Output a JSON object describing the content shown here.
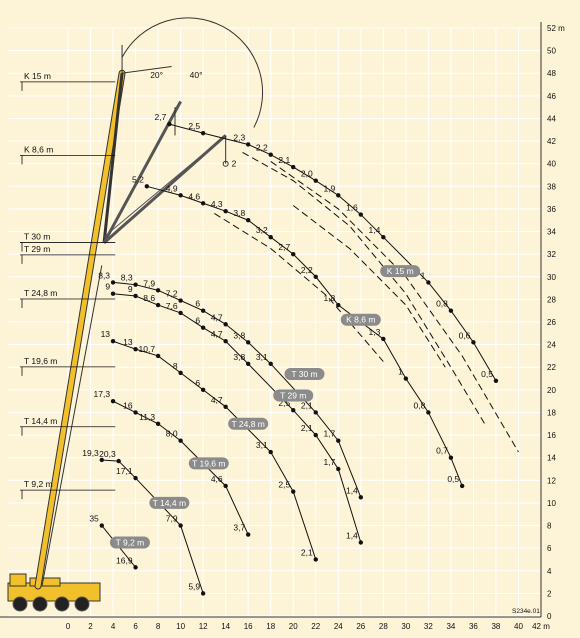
{
  "colors": {
    "background": "#fdf3d6",
    "crane": "#f2c02a",
    "pill": "#8b8b8b",
    "grid": "#ffffff",
    "ink": "#111111"
  },
  "chart_data": {
    "type": "scatter",
    "x_unit": "m",
    "x_ticks": [
      0,
      2,
      4,
      6,
      8,
      10,
      12,
      14,
      16,
      18,
      20,
      22,
      24,
      26,
      28,
      30,
      32,
      34,
      36,
      38,
      40,
      42
    ],
    "y_unit": "m",
    "y_ticks": [
      0,
      2,
      4,
      6,
      8,
      10,
      12,
      14,
      16,
      18,
      20,
      22,
      24,
      26,
      28,
      30,
      32,
      34,
      36,
      38,
      40,
      42,
      44,
      46,
      48,
      50,
      52
    ],
    "xlim": [
      0,
      42
    ],
    "ylim": [
      0,
      52
    ],
    "figure_code": "S234e.01",
    "angles": [
      "20°",
      "40°"
    ],
    "boom_labels": [
      {
        "label": "K 15 m",
        "y": 47.5
      },
      {
        "label": "K 8,6 m",
        "y": 41
      },
      {
        "label": "T 30 m",
        "y": 33.3
      },
      {
        "label": "T 29 m",
        "y": 32.2
      },
      {
        "label": "T 24,8 m",
        "y": 28.3
      },
      {
        "label": "T 19,6 m",
        "y": 22.3
      },
      {
        "label": "T 14,4 m",
        "y": 17
      },
      {
        "label": "T 9,2 m",
        "y": 11.4
      }
    ],
    "curves": [
      {
        "name": "T 9,2 m",
        "label_pos": [
          5.5,
          6.5
        ],
        "style": "solid",
        "points": [
          {
            "x": 3,
            "y": 8,
            "load": "35"
          },
          {
            "x": 6,
            "y": 4.3,
            "load": "16,9"
          }
        ]
      },
      {
        "name": "T 14,4 m",
        "label_pos": [
          9,
          10
        ],
        "style": "solid",
        "points": [
          {
            "x": 3,
            "y": 13.8,
            "load": "19,3"
          },
          {
            "x": 4.5,
            "y": 13.7,
            "load": "20,3"
          },
          {
            "x": 6,
            "y": 12.2,
            "load": "17,1"
          },
          {
            "x": 10,
            "y": 8,
            "load": "7,9"
          },
          {
            "x": 12,
            "y": 2,
            "load": "5,9"
          }
        ]
      },
      {
        "name": "T 19,6 m",
        "label_pos": [
          12.5,
          13.5
        ],
        "style": "solid",
        "points": [
          {
            "x": 4,
            "y": 19,
            "load": "17,3"
          },
          {
            "x": 6,
            "y": 18,
            "load": "16"
          },
          {
            "x": 8,
            "y": 17,
            "load": "11,3"
          },
          {
            "x": 10,
            "y": 15.5,
            "load": "8,0"
          },
          {
            "x": 14,
            "y": 11.5,
            "load": "4,6"
          },
          {
            "x": 16,
            "y": 7.2,
            "load": "3,7"
          }
        ]
      },
      {
        "name": "T 24,8 m",
        "label_pos": [
          16,
          17
        ],
        "style": "solid",
        "points": [
          {
            "x": 4,
            "y": 24.3,
            "load": "13"
          },
          {
            "x": 6,
            "y": 23.6,
            "load": "13"
          },
          {
            "x": 8,
            "y": 23,
            "load": "10,7"
          },
          {
            "x": 10,
            "y": 21.5,
            "load": "8"
          },
          {
            "x": 12,
            "y": 20,
            "load": "6"
          },
          {
            "x": 14,
            "y": 18.5,
            "load": "4,7"
          },
          {
            "x": 18,
            "y": 14.5,
            "load": "3,1"
          },
          {
            "x": 20,
            "y": 11,
            "load": "2,5"
          },
          {
            "x": 22,
            "y": 5,
            "load": "2,1"
          }
        ]
      },
      {
        "name": "T 29 m",
        "label_pos": [
          20,
          19.5
        ],
        "style": "solid",
        "points": [
          {
            "x": 4,
            "y": 28.5,
            "load": "9"
          },
          {
            "x": 6,
            "y": 28.3,
            "load": "9"
          },
          {
            "x": 8,
            "y": 27.5,
            "load": "8,6"
          },
          {
            "x": 10,
            "y": 26.8,
            "load": "7,6"
          },
          {
            "x": 12,
            "y": 25.5,
            "load": "6"
          },
          {
            "x": 14,
            "y": 24.3,
            "load": "4,7"
          },
          {
            "x": 16,
            "y": 22.3,
            "load": "3,8"
          },
          {
            "x": 20,
            "y": 18.2,
            "load": "2,5"
          },
          {
            "x": 22,
            "y": 16,
            "load": "2,1"
          },
          {
            "x": 24,
            "y": 13,
            "load": "1,7"
          },
          {
            "x": 26,
            "y": 6.5,
            "load": "1,4"
          }
        ]
      },
      {
        "name": "T 30 m",
        "label_pos": [
          21,
          21.4
        ],
        "style": "solid",
        "points": [
          {
            "x": 4,
            "y": 29.5,
            "load": "8,3"
          },
          {
            "x": 6,
            "y": 29.3,
            "load": "8,3"
          },
          {
            "x": 8,
            "y": 28.8,
            "load": "7,9"
          },
          {
            "x": 10,
            "y": 27.9,
            "load": "7,2"
          },
          {
            "x": 12,
            "y": 27,
            "load": "6"
          },
          {
            "x": 14,
            "y": 25.8,
            "load": "4,7"
          },
          {
            "x": 16,
            "y": 24.2,
            "load": "3,8"
          },
          {
            "x": 18,
            "y": 22.3,
            "load": "3,1"
          },
          {
            "x": 22,
            "y": 18,
            "load": "2,1"
          },
          {
            "x": 24,
            "y": 15.5,
            "load": "1,7"
          },
          {
            "x": 26,
            "y": 10.5,
            "load": "1,4"
          }
        ]
      },
      {
        "name": "K 8,6 m",
        "label_pos": [
          26,
          26.2
        ],
        "style": "solid",
        "points": [
          {
            "x": 7,
            "y": 38,
            "load": "5,2"
          },
          {
            "x": 10,
            "y": 37.2,
            "load": "4,9"
          },
          {
            "x": 12,
            "y": 36.5,
            "load": "4,6"
          },
          {
            "x": 14,
            "y": 35.8,
            "load": "4,3"
          },
          {
            "x": 16,
            "y": 35,
            "load": "3,8"
          },
          {
            "x": 18,
            "y": 33.5,
            "load": "3,2"
          },
          {
            "x": 20,
            "y": 32,
            "load": "2,7"
          },
          {
            "x": 22,
            "y": 30,
            "load": "2,2"
          },
          {
            "x": 24,
            "y": 27.5,
            "load": "1,8"
          },
          {
            "x": 28,
            "y": 24.5,
            "load": "1,3"
          },
          {
            "x": 30,
            "y": 21,
            "load": "1"
          },
          {
            "x": 32,
            "y": 18,
            "load": "0,8"
          },
          {
            "x": 34,
            "y": 14,
            "load": "0,7"
          },
          {
            "x": 35,
            "y": 11.5,
            "load": "0,5"
          }
        ]
      },
      {
        "name": "K 15 m",
        "label_pos": [
          29.5,
          30.5
        ],
        "style": "solid",
        "points": [
          {
            "x": 9,
            "y": 43.5,
            "load": "2,7"
          },
          {
            "x": 12,
            "y": 42.7,
            "load": "2,5"
          },
          {
            "x": 16,
            "y": 41.7,
            "load": "2,3"
          },
          {
            "x": 18,
            "y": 40.8,
            "load": "2,2"
          },
          {
            "x": 20,
            "y": 39.7,
            "load": "2,1"
          },
          {
            "x": 22,
            "y": 38.5,
            "load": "2,0"
          },
          {
            "x": 24,
            "y": 37.2,
            "load": "1,9"
          },
          {
            "x": 26,
            "y": 35.5,
            "load": "1,6"
          },
          {
            "x": 28,
            "y": 33.5,
            "load": "1,4"
          },
          {
            "x": 32,
            "y": 29.5,
            "load": "1"
          },
          {
            "x": 34,
            "y": 27,
            "load": "0,8"
          },
          {
            "x": 36,
            "y": 24.2,
            "load": "0,6"
          },
          {
            "x": 38,
            "y": 20.8,
            "load": "0,5"
          }
        ]
      }
    ],
    "dashed_curves": [
      {
        "points": [
          [
            15.5,
            41
          ],
          [
            20,
            38.5
          ],
          [
            25,
            34.5
          ],
          [
            30,
            28.5
          ],
          [
            34,
            22
          ],
          [
            37,
            17
          ]
        ]
      },
      {
        "points": [
          [
            18,
            40.2
          ],
          [
            24,
            36
          ],
          [
            30,
            30
          ],
          [
            35,
            23
          ],
          [
            40,
            14.5
          ]
        ]
      },
      {
        "points": [
          [
            13,
            35.6
          ],
          [
            18,
            32.5
          ],
          [
            23,
            28.3
          ],
          [
            28,
            22.5
          ]
        ]
      },
      {
        "points": [
          [
            20,
            36.3
          ],
          [
            25,
            32.5
          ],
          [
            30,
            27.5
          ],
          [
            33.5,
            22
          ]
        ]
      }
    ],
    "boom_tip_load_label": "2"
  }
}
